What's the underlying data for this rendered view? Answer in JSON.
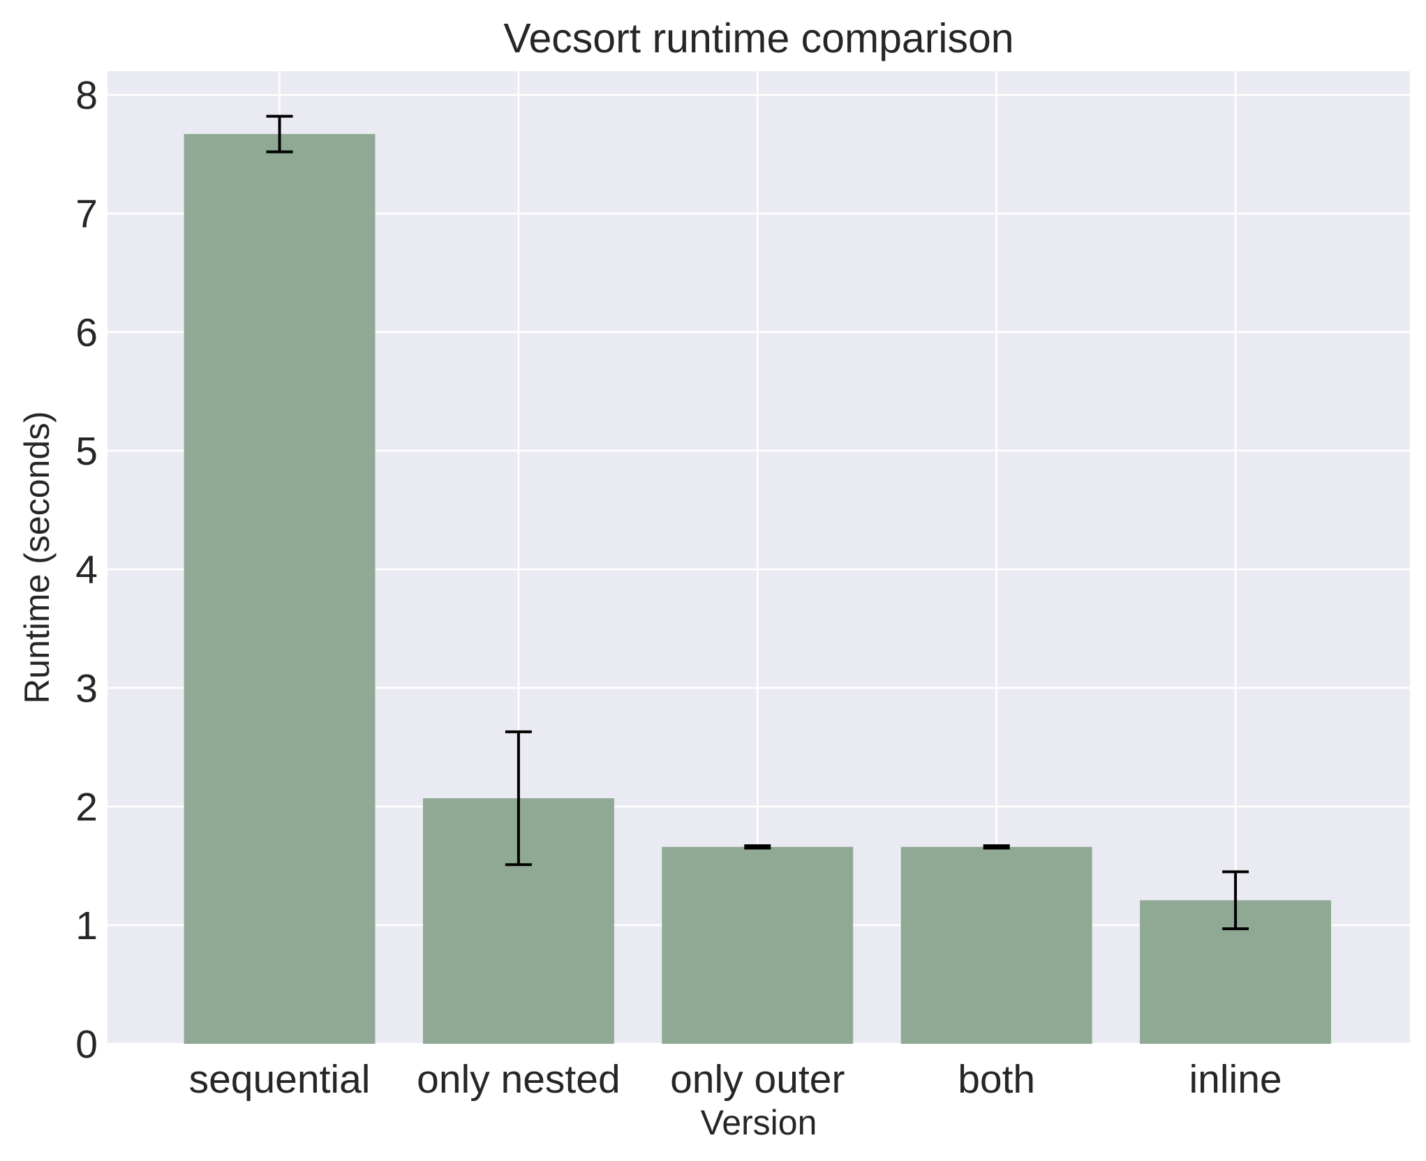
{
  "chart_data": {
    "type": "bar",
    "title": "Vecsort runtime comparison",
    "xlabel": "Version",
    "ylabel": "Runtime (seconds)",
    "categories": [
      "sequential",
      "only nested",
      "only outer",
      "both",
      "inline"
    ],
    "values": [
      7.67,
      2.07,
      1.66,
      1.66,
      1.21
    ],
    "error": [
      0.15,
      0.56,
      0.01,
      0.01,
      0.24
    ],
    "ylim": [
      0,
      8.2
    ],
    "yticks": [
      "0",
      "1",
      "2",
      "3",
      "4",
      "5",
      "6",
      "7",
      "8"
    ],
    "grid": true,
    "colors": {
      "bar": "#8fa994",
      "plot_background": "#eaeaf2",
      "grid": "#ffffff",
      "error_bar": "#000000"
    }
  }
}
